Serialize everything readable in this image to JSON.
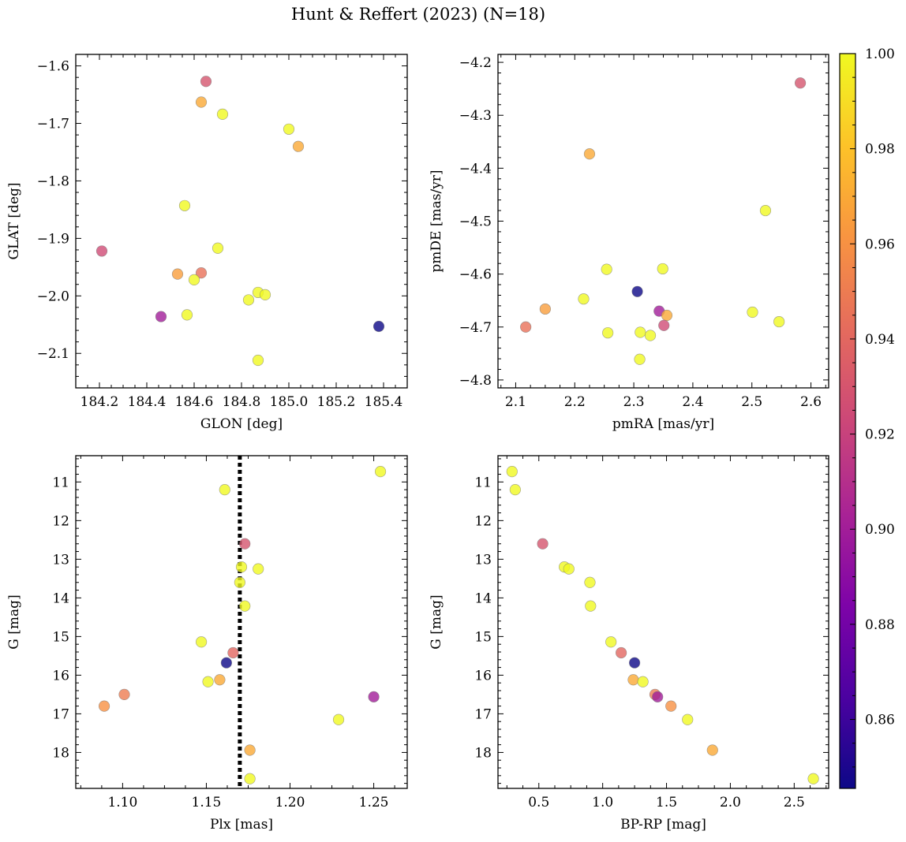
{
  "figure": {
    "suptitle": "Hunt & Reffert (2023) (N=18)"
  },
  "colorbar": {
    "colormap": "plasma",
    "vmin": 0.8455,
    "vmax": 1.0,
    "ticks": [
      0.86,
      0.88,
      0.9,
      0.92,
      0.94,
      0.96,
      0.98,
      1.0
    ],
    "tick_labels": [
      "0.86",
      "0.88",
      "0.90",
      "0.92",
      "0.94",
      "0.96",
      "0.98",
      "1.00"
    ]
  },
  "chart_data": [
    {
      "type": "scatter",
      "xlabel": "GLON [deg]",
      "ylabel": "GLAT [deg]",
      "xlim": [
        184.1,
        185.5
      ],
      "ylim": [
        -2.16,
        -1.58
      ],
      "y_inverted": false,
      "xticks": [
        184.2,
        184.4,
        184.6,
        184.8,
        185.0,
        185.2,
        185.4
      ],
      "xtick_labels": [
        "184.2",
        "184.4",
        "184.6",
        "184.8",
        "185.0",
        "185.2",
        "185.4"
      ],
      "yticks": [
        -2.1,
        -2.0,
        -1.9,
        -1.8,
        -1.7,
        -1.6
      ],
      "ytick_labels": [
        "−2.1",
        "−2.0",
        "−1.9",
        "−1.8",
        "−1.7",
        "−1.6"
      ],
      "points": [
        {
          "x": 184.65,
          "y": -1.627,
          "c": 0.93
        },
        {
          "x": 184.63,
          "y": -1.663,
          "c": 0.97
        },
        {
          "x": 184.72,
          "y": -1.684,
          "c": 1.0
        },
        {
          "x": 185.0,
          "y": -1.71,
          "c": 1.0
        },
        {
          "x": 185.04,
          "y": -1.74,
          "c": 0.97
        },
        {
          "x": 184.56,
          "y": -1.843,
          "c": 1.0
        },
        {
          "x": 184.7,
          "y": -1.917,
          "c": 1.0
        },
        {
          "x": 184.21,
          "y": -1.922,
          "c": 0.925
        },
        {
          "x": 184.53,
          "y": -1.962,
          "c": 0.965
        },
        {
          "x": 184.63,
          "y": -1.96,
          "c": 0.945
        },
        {
          "x": 184.6,
          "y": -1.972,
          "c": 1.0
        },
        {
          "x": 184.87,
          "y": -1.994,
          "c": 1.0
        },
        {
          "x": 184.9,
          "y": -1.998,
          "c": 1.0
        },
        {
          "x": 184.83,
          "y": -2.007,
          "c": 1.0
        },
        {
          "x": 184.57,
          "y": -2.033,
          "c": 1.0
        },
        {
          "x": 184.46,
          "y": -2.036,
          "c": 0.9
        },
        {
          "x": 185.38,
          "y": -2.053,
          "c": 0.8455
        },
        {
          "x": 184.87,
          "y": -2.112,
          "c": 1.0
        }
      ]
    },
    {
      "type": "scatter",
      "xlabel": "pmRA [mas/yr]",
      "ylabel": "pmDE [mas/yr]",
      "xlim": [
        2.07,
        2.63
      ],
      "ylim": [
        -4.815,
        -4.185
      ],
      "y_inverted": false,
      "xticks": [
        2.1,
        2.2,
        2.3,
        2.4,
        2.5,
        2.6
      ],
      "xtick_labels": [
        "2.1",
        "2.2",
        "2.3",
        "2.4",
        "2.5",
        "2.6"
      ],
      "yticks": [
        -4.8,
        -4.7,
        -4.6,
        -4.5,
        -4.4,
        -4.3,
        -4.2
      ],
      "ytick_labels": [
        "−4.8",
        "−4.7",
        "−4.6",
        "−4.5",
        "−4.4",
        "−4.3",
        "−4.2"
      ],
      "points": [
        {
          "x": 2.582,
          "y": -4.239,
          "c": 0.93
        },
        {
          "x": 2.225,
          "y": -4.373,
          "c": 0.97
        },
        {
          "x": 2.523,
          "y": -4.48,
          "c": 1.0
        },
        {
          "x": 2.254,
          "y": -4.591,
          "c": 1.0
        },
        {
          "x": 2.349,
          "y": -4.59,
          "c": 1.0
        },
        {
          "x": 2.215,
          "y": -4.647,
          "c": 1.0
        },
        {
          "x": 2.306,
          "y": -4.633,
          "c": 0.8455
        },
        {
          "x": 2.15,
          "y": -4.666,
          "c": 0.965
        },
        {
          "x": 2.343,
          "y": -4.67,
          "c": 0.9
        },
        {
          "x": 2.356,
          "y": -4.678,
          "c": 0.97
        },
        {
          "x": 2.501,
          "y": -4.672,
          "c": 1.0
        },
        {
          "x": 2.546,
          "y": -4.69,
          "c": 1.0
        },
        {
          "x": 2.117,
          "y": -4.7,
          "c": 0.945
        },
        {
          "x": 2.351,
          "y": -4.697,
          "c": 0.925
        },
        {
          "x": 2.256,
          "y": -4.711,
          "c": 1.0
        },
        {
          "x": 2.311,
          "y": -4.71,
          "c": 1.0
        },
        {
          "x": 2.328,
          "y": -4.716,
          "c": 1.0
        },
        {
          "x": 2.31,
          "y": -4.761,
          "c": 1.0
        }
      ]
    },
    {
      "type": "scatter",
      "xlabel": "Plx [mas]",
      "ylabel": "G [mag]",
      "xlim": [
        1.072,
        1.27
      ],
      "ylim": [
        18.93,
        10.32
      ],
      "y_inverted": true,
      "vline_x": 1.17,
      "xticks": [
        1.1,
        1.15,
        1.2,
        1.25
      ],
      "xtick_labels": [
        "1.10",
        "1.15",
        "1.20",
        "1.25"
      ],
      "yticks": [
        11,
        12,
        13,
        14,
        15,
        16,
        17,
        18
      ],
      "ytick_labels": [
        "11",
        "12",
        "13",
        "14",
        "15",
        "16",
        "17",
        "18"
      ],
      "points": [
        {
          "x": 1.254,
          "y": 10.73,
          "c": 1.0
        },
        {
          "x": 1.161,
          "y": 11.2,
          "c": 1.0
        },
        {
          "x": 1.173,
          "y": 12.6,
          "c": 0.93
        },
        {
          "x": 1.171,
          "y": 13.2,
          "c": 1.0
        },
        {
          "x": 1.181,
          "y": 13.25,
          "c": 1.0
        },
        {
          "x": 1.17,
          "y": 13.6,
          "c": 1.0
        },
        {
          "x": 1.173,
          "y": 14.21,
          "c": 1.0
        },
        {
          "x": 1.147,
          "y": 15.14,
          "c": 1.0
        },
        {
          "x": 1.166,
          "y": 15.42,
          "c": 0.94
        },
        {
          "x": 1.162,
          "y": 15.68,
          "c": 0.8455
        },
        {
          "x": 1.158,
          "y": 16.12,
          "c": 0.97
        },
        {
          "x": 1.151,
          "y": 16.17,
          "c": 1.0
        },
        {
          "x": 1.101,
          "y": 16.5,
          "c": 0.95
        },
        {
          "x": 1.25,
          "y": 16.56,
          "c": 0.9
        },
        {
          "x": 1.089,
          "y": 16.8,
          "c": 0.96
        },
        {
          "x": 1.229,
          "y": 17.15,
          "c": 1.0
        },
        {
          "x": 1.176,
          "y": 17.94,
          "c": 0.97
        },
        {
          "x": 1.176,
          "y": 18.68,
          "c": 1.0
        }
      ]
    },
    {
      "type": "scatter",
      "xlabel": "BP-RP [mag]",
      "ylabel": "G [mag]",
      "xlim": [
        0.18,
        2.77
      ],
      "ylim": [
        18.93,
        10.32
      ],
      "y_inverted": true,
      "xticks": [
        0.5,
        1.0,
        1.5,
        2.0,
        2.5
      ],
      "xtick_labels": [
        "0.5",
        "1.0",
        "1.5",
        "2.0",
        "2.5"
      ],
      "yticks": [
        11,
        12,
        13,
        14,
        15,
        16,
        17,
        18
      ],
      "ytick_labels": [
        "11",
        "12",
        "13",
        "14",
        "15",
        "16",
        "17",
        "18"
      ],
      "points": [
        {
          "x": 0.29,
          "y": 10.73,
          "c": 1.0
        },
        {
          "x": 0.315,
          "y": 11.2,
          "c": 1.0
        },
        {
          "x": 0.53,
          "y": 12.6,
          "c": 0.93
        },
        {
          "x": 0.7,
          "y": 13.2,
          "c": 1.0
        },
        {
          "x": 0.735,
          "y": 13.25,
          "c": 1.0
        },
        {
          "x": 0.9,
          "y": 13.6,
          "c": 1.0
        },
        {
          "x": 0.905,
          "y": 14.21,
          "c": 1.0
        },
        {
          "x": 1.065,
          "y": 15.14,
          "c": 1.0
        },
        {
          "x": 1.145,
          "y": 15.42,
          "c": 0.94
        },
        {
          "x": 1.25,
          "y": 15.68,
          "c": 0.8455
        },
        {
          "x": 1.24,
          "y": 16.12,
          "c": 0.97
        },
        {
          "x": 1.315,
          "y": 16.17,
          "c": 1.0
        },
        {
          "x": 1.41,
          "y": 16.5,
          "c": 0.95
        },
        {
          "x": 1.43,
          "y": 16.56,
          "c": 0.9
        },
        {
          "x": 1.535,
          "y": 16.8,
          "c": 0.96
        },
        {
          "x": 1.665,
          "y": 17.15,
          "c": 1.0
        },
        {
          "x": 1.86,
          "y": 17.94,
          "c": 0.97
        },
        {
          "x": 2.65,
          "y": 18.68,
          "c": 1.0
        }
      ]
    }
  ]
}
